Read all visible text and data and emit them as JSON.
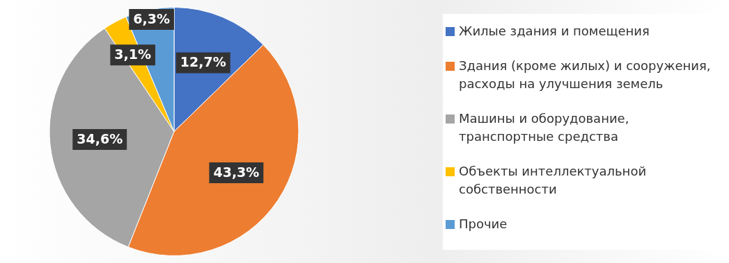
{
  "chart_data": {
    "type": "pie",
    "categories": [
      "Жилые здания и помещения",
      "Здания (кроме жилых) и сооружения, расходы на улучшения земель",
      "Машины и оборудование, транспортные средства",
      "Объекты интеллектуальной собственности",
      "Прочие"
    ],
    "values": [
      12.7,
      43.3,
      34.6,
      3.1,
      6.3
    ],
    "colors": [
      "#4472c4",
      "#ed7d31",
      "#a5a5a5",
      "#ffc000",
      "#5b9bd5"
    ],
    "value_labels": [
      "12,7%",
      "43,3%",
      "34,6%",
      "3,1%",
      "6,3%"
    ],
    "legend": "right"
  }
}
